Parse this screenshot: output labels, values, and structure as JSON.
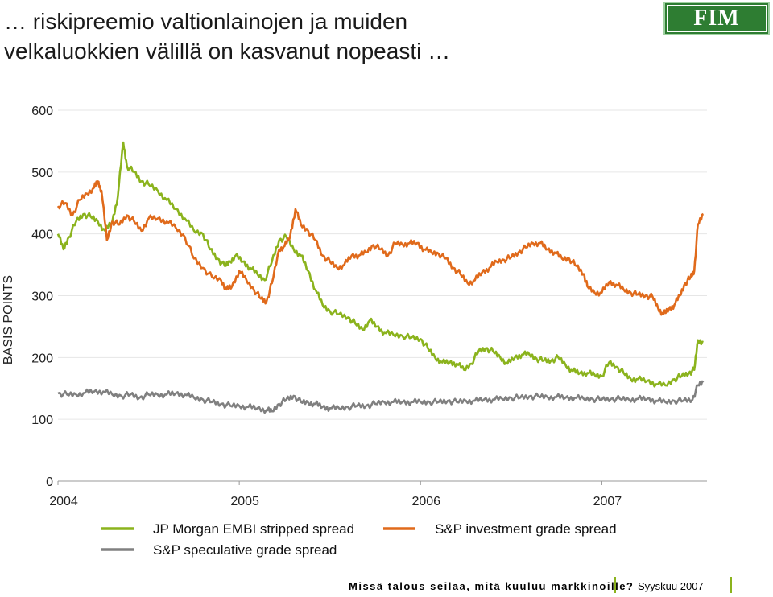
{
  "header": {
    "title_line1": "… riskipreemio valtionlainojen ja muiden",
    "title_line2": "velkaluokkien välillä on kasvanut nopeasti …",
    "logo_text": "FIM"
  },
  "footer": {
    "left": "Missä talous seilaa, mitä kuuluu markkinoille?",
    "right": "Syyskuu 2007"
  },
  "colors": {
    "green": "#8bb31d",
    "orange": "#e06a1b",
    "gray": "#808080",
    "logo_bg": "#2e7d32"
  },
  "chart_data": {
    "type": "line",
    "ylabel": "BASIS POINTS",
    "xlabel": "",
    "ylim": [
      0,
      600
    ],
    "yticks": [
      "0",
      "100",
      "200",
      "300",
      "400",
      "500",
      "600"
    ],
    "xlim": [
      2004.0,
      2007.58
    ],
    "xticks": [
      "2004",
      "2005",
      "2006",
      "2007"
    ],
    "grid": true,
    "legend_position": "bottom",
    "series": [
      {
        "name": "JP Morgan EMBI stripped spread",
        "color": "#8bb31d",
        "points": [
          [
            2004.0,
            400
          ],
          [
            2004.03,
            375
          ],
          [
            2004.06,
            395
          ],
          [
            2004.1,
            420
          ],
          [
            2004.14,
            432
          ],
          [
            2004.18,
            428
          ],
          [
            2004.22,
            420
          ],
          [
            2004.26,
            405
          ],
          [
            2004.3,
            420
          ],
          [
            2004.33,
            460
          ],
          [
            2004.36,
            548
          ],
          [
            2004.38,
            510
          ],
          [
            2004.42,
            500
          ],
          [
            2004.46,
            485
          ],
          [
            2004.5,
            480
          ],
          [
            2004.55,
            470
          ],
          [
            2004.6,
            455
          ],
          [
            2004.65,
            440
          ],
          [
            2004.7,
            425
          ],
          [
            2004.75,
            405
          ],
          [
            2004.8,
            400
          ],
          [
            2004.84,
            375
          ],
          [
            2004.88,
            360
          ],
          [
            2004.92,
            348
          ],
          [
            2004.95,
            355
          ],
          [
            2004.98,
            365
          ],
          [
            2005.02,
            355
          ],
          [
            2005.06,
            345
          ],
          [
            2005.1,
            335
          ],
          [
            2005.14,
            325
          ],
          [
            2005.18,
            355
          ],
          [
            2005.22,
            390
          ],
          [
            2005.26,
            395
          ],
          [
            2005.3,
            375
          ],
          [
            2005.34,
            365
          ],
          [
            2005.38,
            340
          ],
          [
            2005.42,
            310
          ],
          [
            2005.46,
            285
          ],
          [
            2005.5,
            275
          ],
          [
            2005.55,
            270
          ],
          [
            2005.6,
            265
          ],
          [
            2005.64,
            255
          ],
          [
            2005.68,
            245
          ],
          [
            2005.72,
            260
          ],
          [
            2005.76,
            250
          ],
          [
            2005.8,
            240
          ],
          [
            2005.85,
            237
          ],
          [
            2005.9,
            235
          ],
          [
            2005.95,
            232
          ],
          [
            2006.0,
            230
          ],
          [
            2006.04,
            215
          ],
          [
            2006.08,
            200
          ],
          [
            2006.12,
            192
          ],
          [
            2006.16,
            192
          ],
          [
            2006.2,
            190
          ],
          [
            2006.24,
            180
          ],
          [
            2006.28,
            190
          ],
          [
            2006.32,
            210
          ],
          [
            2006.36,
            215
          ],
          [
            2006.4,
            210
          ],
          [
            2006.44,
            200
          ],
          [
            2006.48,
            190
          ],
          [
            2006.52,
            200
          ],
          [
            2006.56,
            205
          ],
          [
            2006.6,
            205
          ],
          [
            2006.64,
            198
          ],
          [
            2006.68,
            195
          ],
          [
            2006.72,
            195
          ],
          [
            2006.76,
            200
          ],
          [
            2006.8,
            188
          ],
          [
            2006.84,
            178
          ],
          [
            2006.88,
            175
          ],
          [
            2006.92,
            175
          ],
          [
            2006.96,
            172
          ],
          [
            2007.0,
            170
          ],
          [
            2007.04,
            192
          ],
          [
            2007.08,
            185
          ],
          [
            2007.12,
            175
          ],
          [
            2007.16,
            165
          ],
          [
            2007.2,
            165
          ],
          [
            2007.25,
            162
          ],
          [
            2007.3,
            157
          ],
          [
            2007.35,
            155
          ],
          [
            2007.4,
            165
          ],
          [
            2007.44,
            170
          ],
          [
            2007.48,
            175
          ],
          [
            2007.51,
            180
          ],
          [
            2007.53,
            228
          ],
          [
            2007.56,
            225
          ]
        ]
      },
      {
        "name": "S&P investment grade spread",
        "color": "#e06a1b",
        "points": [
          [
            2004.0,
            445
          ],
          [
            2004.04,
            450
          ],
          [
            2004.08,
            430
          ],
          [
            2004.12,
            455
          ],
          [
            2004.16,
            465
          ],
          [
            2004.2,
            475
          ],
          [
            2004.22,
            485
          ],
          [
            2004.24,
            470
          ],
          [
            2004.27,
            390
          ],
          [
            2004.3,
            420
          ],
          [
            2004.34,
            415
          ],
          [
            2004.38,
            430
          ],
          [
            2004.42,
            420
          ],
          [
            2004.46,
            405
          ],
          [
            2004.5,
            425
          ],
          [
            2004.55,
            425
          ],
          [
            2004.6,
            420
          ],
          [
            2004.65,
            410
          ],
          [
            2004.7,
            395
          ],
          [
            2004.75,
            360
          ],
          [
            2004.8,
            345
          ],
          [
            2004.85,
            330
          ],
          [
            2004.9,
            325
          ],
          [
            2004.93,
            310
          ],
          [
            2004.96,
            315
          ],
          [
            2005.0,
            340
          ],
          [
            2005.04,
            325
          ],
          [
            2005.08,
            310
          ],
          [
            2005.12,
            295
          ],
          [
            2005.15,
            290
          ],
          [
            2005.18,
            320
          ],
          [
            2005.22,
            375
          ],
          [
            2005.25,
            380
          ],
          [
            2005.28,
            395
          ],
          [
            2005.31,
            440
          ],
          [
            2005.34,
            415
          ],
          [
            2005.38,
            405
          ],
          [
            2005.42,
            390
          ],
          [
            2005.46,
            365
          ],
          [
            2005.5,
            355
          ],
          [
            2005.54,
            345
          ],
          [
            2005.58,
            350
          ],
          [
            2005.62,
            365
          ],
          [
            2005.66,
            365
          ],
          [
            2005.7,
            370
          ],
          [
            2005.74,
            382
          ],
          [
            2005.78,
            375
          ],
          [
            2005.82,
            365
          ],
          [
            2005.86,
            385
          ],
          [
            2005.9,
            383
          ],
          [
            2005.94,
            385
          ],
          [
            2005.98,
            385
          ],
          [
            2006.02,
            375
          ],
          [
            2006.06,
            370
          ],
          [
            2006.1,
            368
          ],
          [
            2006.14,
            360
          ],
          [
            2006.18,
            345
          ],
          [
            2006.22,
            335
          ],
          [
            2006.26,
            320
          ],
          [
            2006.3,
            325
          ],
          [
            2006.34,
            338
          ],
          [
            2006.38,
            345
          ],
          [
            2006.42,
            355
          ],
          [
            2006.46,
            358
          ],
          [
            2006.5,
            362
          ],
          [
            2006.54,
            370
          ],
          [
            2006.58,
            378
          ],
          [
            2006.62,
            385
          ],
          [
            2006.66,
            385
          ],
          [
            2006.7,
            375
          ],
          [
            2006.74,
            370
          ],
          [
            2006.78,
            360
          ],
          [
            2006.82,
            360
          ],
          [
            2006.86,
            348
          ],
          [
            2006.9,
            335
          ],
          [
            2006.92,
            315
          ],
          [
            2006.96,
            305
          ],
          [
            2007.0,
            305
          ],
          [
            2007.04,
            322
          ],
          [
            2007.08,
            318
          ],
          [
            2007.12,
            310
          ],
          [
            2007.16,
            305
          ],
          [
            2007.2,
            302
          ],
          [
            2007.24,
            300
          ],
          [
            2007.28,
            298
          ],
          [
            2007.31,
            280
          ],
          [
            2007.34,
            270
          ],
          [
            2007.37,
            278
          ],
          [
            2007.4,
            285
          ],
          [
            2007.43,
            300
          ],
          [
            2007.46,
            320
          ],
          [
            2007.49,
            330
          ],
          [
            2007.51,
            340
          ],
          [
            2007.53,
            415
          ],
          [
            2007.56,
            432
          ]
        ]
      },
      {
        "name": "S&P speculative grade spread",
        "color": "#808080",
        "points": [
          [
            2004.0,
            142
          ],
          [
            2004.05,
            140
          ],
          [
            2004.1,
            140
          ],
          [
            2004.15,
            143
          ],
          [
            2004.2,
            145
          ],
          [
            2004.25,
            145
          ],
          [
            2004.3,
            140
          ],
          [
            2004.35,
            138
          ],
          [
            2004.4,
            140
          ],
          [
            2004.45,
            135
          ],
          [
            2004.5,
            140
          ],
          [
            2004.55,
            140
          ],
          [
            2004.6,
            140
          ],
          [
            2004.65,
            142
          ],
          [
            2004.7,
            140
          ],
          [
            2004.75,
            135
          ],
          [
            2004.8,
            132
          ],
          [
            2004.85,
            128
          ],
          [
            2004.9,
            125
          ],
          [
            2004.95,
            122
          ],
          [
            2005.0,
            122
          ],
          [
            2005.05,
            120
          ],
          [
            2005.1,
            118
          ],
          [
            2005.15,
            115
          ],
          [
            2005.18,
            113
          ],
          [
            2005.22,
            125
          ],
          [
            2005.26,
            132
          ],
          [
            2005.3,
            138
          ],
          [
            2005.34,
            128
          ],
          [
            2005.38,
            127
          ],
          [
            2005.42,
            125
          ],
          [
            2005.46,
            120
          ],
          [
            2005.5,
            118
          ],
          [
            2005.55,
            118
          ],
          [
            2005.6,
            120
          ],
          [
            2005.65,
            122
          ],
          [
            2005.7,
            122
          ],
          [
            2005.75,
            125
          ],
          [
            2005.8,
            128
          ],
          [
            2005.85,
            128
          ],
          [
            2005.9,
            128
          ],
          [
            2005.95,
            128
          ],
          [
            2006.0,
            128
          ],
          [
            2006.05,
            128
          ],
          [
            2006.1,
            128
          ],
          [
            2006.15,
            130
          ],
          [
            2006.2,
            128
          ],
          [
            2006.25,
            130
          ],
          [
            2006.3,
            130
          ],
          [
            2006.35,
            132
          ],
          [
            2006.4,
            132
          ],
          [
            2006.45,
            133
          ],
          [
            2006.5,
            135
          ],
          [
            2006.55,
            135
          ],
          [
            2006.6,
            137
          ],
          [
            2006.65,
            137
          ],
          [
            2006.7,
            136
          ],
          [
            2006.75,
            136
          ],
          [
            2006.8,
            135
          ],
          [
            2006.85,
            135
          ],
          [
            2006.9,
            133
          ],
          [
            2006.95,
            133
          ],
          [
            2007.0,
            132
          ],
          [
            2007.05,
            133
          ],
          [
            2007.1,
            133
          ],
          [
            2007.15,
            132
          ],
          [
            2007.2,
            133
          ],
          [
            2007.25,
            133
          ],
          [
            2007.3,
            130
          ],
          [
            2007.35,
            128
          ],
          [
            2007.4,
            130
          ],
          [
            2007.45,
            130
          ],
          [
            2007.5,
            132
          ],
          [
            2007.53,
            155
          ],
          [
            2007.56,
            160
          ]
        ]
      }
    ]
  }
}
